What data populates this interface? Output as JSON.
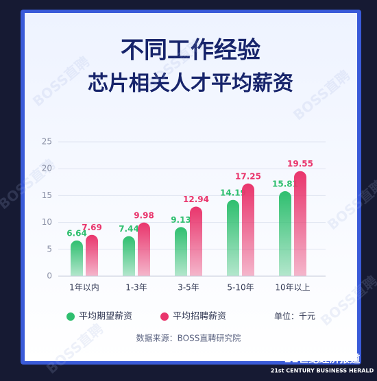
{
  "chart_data": {
    "type": "bar",
    "title": "不同工作经验",
    "subtitle": "芯片相关人才平均薪资",
    "categories": [
      "1年以内",
      "1-3年",
      "3-5年",
      "5-10年",
      "10年以上"
    ],
    "series": [
      {
        "name": "平均期望薪资",
        "color": "#2fbf6f",
        "values": [
          6.64,
          7.44,
          9.13,
          14.19,
          15.81
        ]
      },
      {
        "name": "平均招聘薪资",
        "color": "#e9356c",
        "values": [
          7.69,
          9.98,
          12.94,
          17.25,
          19.55
        ]
      }
    ],
    "ylim": [
      0,
      25
    ],
    "yticks": [
      0,
      5,
      10,
      15,
      20,
      25
    ],
    "grid": true,
    "unit": "单位：千元",
    "source": "数据来源：BOSS直聘研究院"
  },
  "watermark": "BOSS直聘",
  "publisher": {
    "name": "21世纪经济报道",
    "name_en": "21st CENTURY BUSINESS HERALD"
  }
}
